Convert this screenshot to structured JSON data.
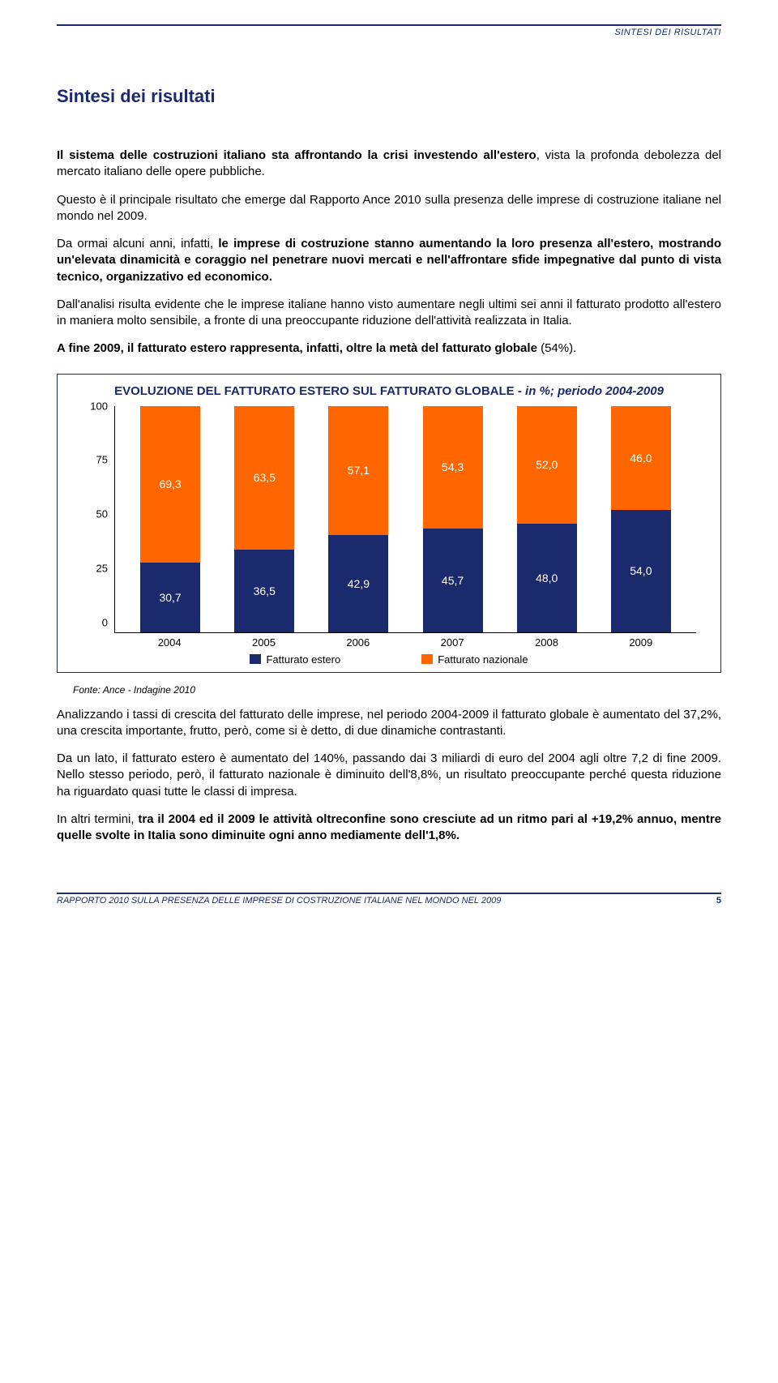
{
  "header": {
    "section": "SINTESI DEI RISULTATI"
  },
  "title": "Sintesi dei risultati",
  "paragraphs": {
    "p1a": "Il sistema delle costruzioni italiano sta affrontando la crisi investendo all'estero",
    "p1b": ", vista la profonda debolezza del mercato italiano delle opere pubbliche.",
    "p2": "Questo è il principale risultato che emerge dal Rapporto Ance 2010 sulla presenza delle imprese di costruzione italiane nel mondo nel 2009.",
    "p3a": "Da ormai alcuni anni, infatti, ",
    "p3b": "le imprese di costruzione stanno aumentando la loro presenza all'estero, mostrando un'elevata dinamicità e coraggio nel penetrare nuovi mercati e nell'affrontare sfide impegnative dal punto di vista tecnico, organizzativo ed economico.",
    "p4": "Dall'analisi risulta evidente che le imprese italiane hanno visto aumentare negli ultimi sei anni il fatturato prodotto all'estero in maniera molto sensibile, a fronte di una preoccupante riduzione dell'attività realizzata in Italia.",
    "p5a": "A fine 2009, il fatturato estero rappresenta, infatti, oltre la metà del fatturato globale",
    "p5b": " (54%).",
    "p6": "Analizzando i tassi di crescita del fatturato delle imprese, nel periodo 2004-2009 il fatturato globale è aumentato del 37,2%, una crescita importante, frutto, però, come si è detto, di due dinamiche contrastanti.",
    "p7": "Da un lato, il fatturato estero è aumentato del 140%, passando dai 3 miliardi di euro del 2004 agli oltre 7,2 di fine 2009. Nello stesso periodo, però, il fatturato nazionale è diminuito dell'8,8%, un risultato preoccupante perché questa riduzione ha riguardato quasi tutte le classi di impresa.",
    "p8a": "In altri termini, ",
    "p8b": "tra il 2004 ed il 2009 le attività oltreconfine sono cresciute ad un ritmo pari al +19,2% annuo, mentre quelle svolte in Italia sono diminuite ogni anno mediamente dell'1,8%."
  },
  "chart": {
    "title_main": "EVOLUZIONE DEL FATTURATO ESTERO SUL FATTURATO GLOBALE -",
    "title_italic": " in %; periodo 2004-2009",
    "y_ticks": [
      "100",
      "75",
      "50",
      "25",
      "0"
    ],
    "ylim_max": 100,
    "categories": [
      "2004",
      "2005",
      "2006",
      "2007",
      "2008",
      "2009"
    ],
    "series": {
      "nazionale": {
        "label": "Fatturato nazionale",
        "color": "#ff6600",
        "values": [
          69.3,
          63.5,
          57.1,
          54.3,
          52.0,
          46.0
        ],
        "labels": [
          "69,3",
          "63,5",
          "57,1",
          "54,3",
          "52,0",
          "46,0"
        ]
      },
      "estero": {
        "label": "Fatturato estero",
        "color": "#1a2a6c",
        "values": [
          30.7,
          36.5,
          42.9,
          45.7,
          48.0,
          54.0
        ],
        "labels": [
          "30,7",
          "36,5",
          "42,9",
          "45,7",
          "48,0",
          "54,0"
        ]
      }
    },
    "source": "Fonte: Ance - Indagine 2010"
  },
  "footer": {
    "left": "RAPPORTO 2010 SULLA PRESENZA DELLE IMPRESE DI COSTRUZIONE ITALIANE NEL MONDO NEL 2009",
    "page": "5"
  }
}
